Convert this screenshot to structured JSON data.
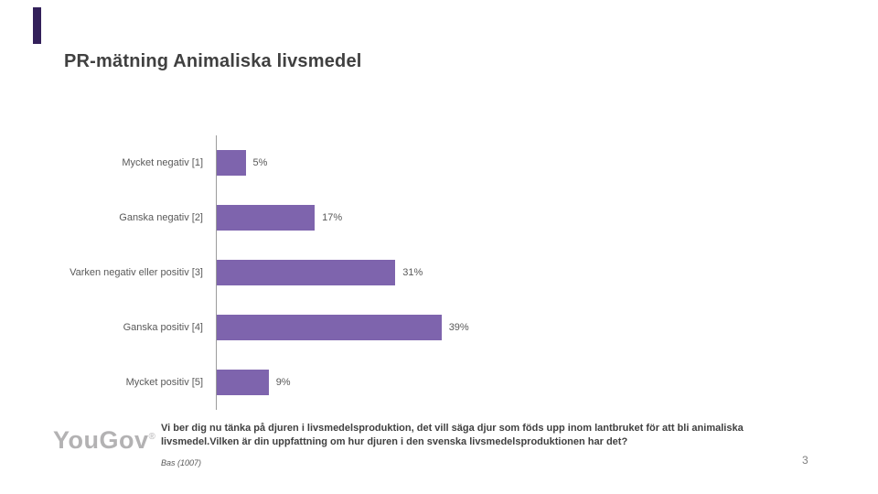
{
  "title": "PR-mätning Animaliska livsmedel",
  "accent": {
    "corner_color": "#33205a"
  },
  "chart_data": {
    "type": "bar",
    "orientation": "horizontal",
    "title": "PR-mätning Animaliska livsmedel",
    "categories": [
      "Mycket negativ [1]",
      "Ganska negativ [2]",
      "Varken negativ eller positiv [3]",
      "Ganska positiv [4]",
      "Mycket positiv [5]"
    ],
    "values": [
      5,
      17,
      31,
      39,
      9
    ],
    "value_suffix": "%",
    "bar_color": "#7e64ad",
    "axis_color": "#9b9b9b",
    "xlim": [
      0,
      100
    ],
    "grid": false,
    "legend": false
  },
  "footer": {
    "logo_text": "YouGov",
    "logo_mark": "®",
    "question": "Vi ber dig nu tänka på djuren i livsmedelsproduktion, det vill säga djur som föds upp inom lantbruket för att bli animaliska livsmedel.Vilken är din uppfattning om hur djuren i den svenska livsmedelsproduktionen har det?",
    "base": "Bas (1007)",
    "page_number": "3"
  }
}
